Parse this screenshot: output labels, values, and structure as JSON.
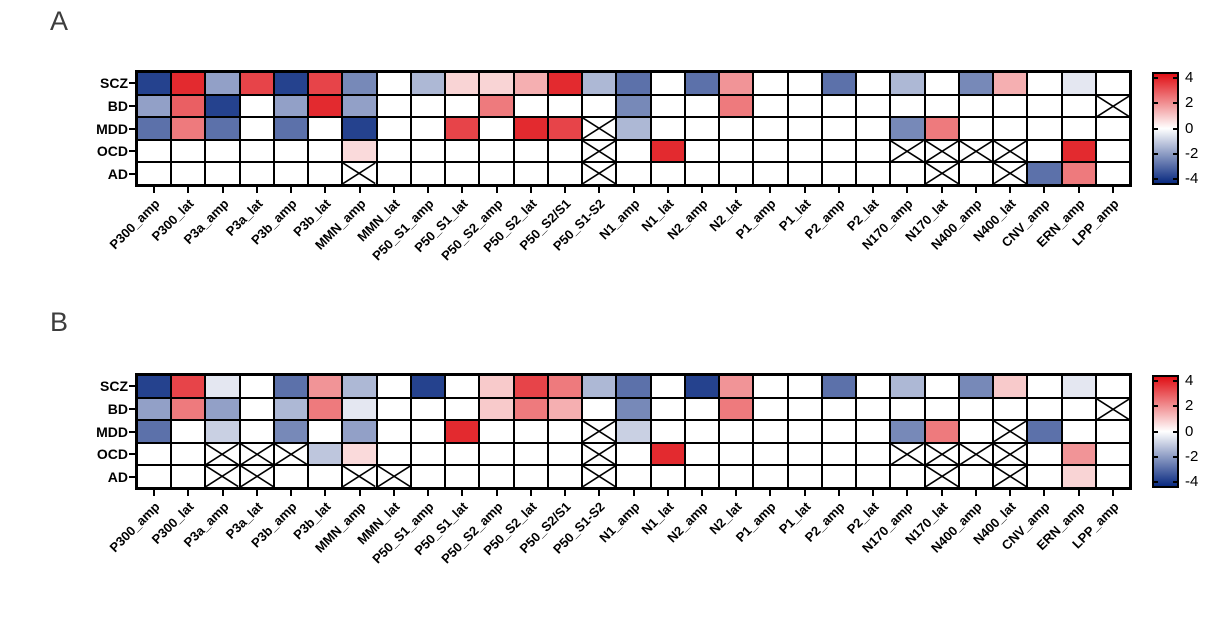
{
  "figure": {
    "panel_a_label": "A",
    "panel_b_label": "B"
  },
  "colorbar": {
    "ticks": [
      "4",
      "2",
      "0",
      "-2",
      "-4"
    ],
    "tick_values": [
      4,
      2,
      0,
      -2,
      -4
    ],
    "range": [
      -4.5,
      4.5
    ],
    "vmax": 4.5,
    "positive_color": "#e00f15",
    "negative_color": "#0a2a80",
    "zero_color": "#ffffff"
  },
  "chart_data": [
    {
      "type": "heatmap",
      "panel": "A",
      "rows": [
        "SCZ",
        "BD",
        "MDD",
        "OCD",
        "AD"
      ],
      "columns": [
        "P300_amp",
        "P300_lat",
        "P3a_amp",
        "P3a_lat",
        "P3b_amp",
        "P3b_lat",
        "MMN_amp",
        "MMN_lat",
        "P50_S1_amp",
        "P50_S1_lat",
        "P50_S2_amp",
        "P50_S2_lat",
        "P50_S2/S1",
        "P50_S1-S2",
        "N1_amp",
        "N1_lat",
        "N2_amp",
        "N2_lat",
        "P1_amp",
        "P1_lat",
        "P2_amp",
        "P2_lat",
        "N170_amp",
        "N170_lat",
        "N400_amp",
        "N400_lat",
        "CNV_amp",
        "ERN_amp",
        "LPP_amp"
      ],
      "values": [
        [
          -4,
          4,
          -2,
          3.5,
          -4,
          3.5,
          -2.5,
          0,
          -1.5,
          0.8,
          0.8,
          1.5,
          4,
          -1.5,
          -3,
          0,
          -3,
          2,
          0,
          0,
          -3,
          0,
          -1.5,
          0,
          -2.5,
          1.5,
          0,
          -0.5,
          0
        ],
        [
          -2,
          3,
          -4,
          0,
          -2,
          4,
          -2,
          0,
          0,
          0,
          2.5,
          0,
          0,
          0,
          -2.5,
          0,
          0,
          2.5,
          0,
          0,
          0,
          0,
          0,
          0,
          0,
          0,
          0,
          0,
          "x"
        ],
        [
          -3,
          2.5,
          -3,
          0,
          -3,
          0,
          -4,
          0,
          0,
          3.5,
          0,
          4,
          3.5,
          "x",
          -1.5,
          0,
          0,
          0,
          0,
          0,
          0,
          0,
          -2.5,
          2.5,
          0,
          0,
          0,
          0,
          0
        ],
        [
          0,
          0,
          0,
          0,
          0,
          0,
          0.7,
          0,
          0,
          0,
          0,
          0,
          0,
          "x",
          0,
          4,
          0,
          0,
          0,
          0,
          0,
          0,
          "x",
          "x",
          "x",
          "x",
          0,
          4,
          0
        ],
        [
          0,
          0,
          0,
          0,
          0,
          0,
          "x",
          0,
          0,
          0,
          0,
          0,
          0,
          "x",
          0,
          0,
          0,
          0,
          0,
          0,
          0,
          0,
          0,
          "x",
          0,
          "x",
          -3,
          2.5,
          0
        ]
      ]
    },
    {
      "type": "heatmap",
      "panel": "B",
      "rows": [
        "SCZ",
        "BD",
        "MDD",
        "OCD",
        "AD"
      ],
      "columns": [
        "P300_amp",
        "P300_lat",
        "P3a_amp",
        "P3a_lat",
        "P3b_amp",
        "P3b_lat",
        "MMN_amp",
        "MMN_lat",
        "P50_S1_amp",
        "P50_S1_lat",
        "P50_S2_amp",
        "P50_S2_lat",
        "P50_S2/S1",
        "P50_S1-S2",
        "N1_amp",
        "N1_lat",
        "N2_amp",
        "N2_lat",
        "P1_amp",
        "P1_lat",
        "P2_amp",
        "P2_lat",
        "N170_amp",
        "N170_lat",
        "N400_amp",
        "N400_lat",
        "CNV_amp",
        "ERN_amp",
        "LPP_amp"
      ],
      "values": [
        [
          -4,
          3.5,
          -0.5,
          0,
          -3,
          2,
          -1.5,
          0,
          -4,
          0,
          1,
          3.5,
          2.5,
          -1.5,
          -3,
          0,
          -4,
          2,
          0,
          0,
          -3,
          0,
          -1.5,
          0,
          -2.5,
          1,
          0,
          -0.5,
          0
        ],
        [
          -2,
          2.5,
          -2,
          0,
          -1.5,
          2.5,
          -0.5,
          0,
          0,
          0,
          1,
          2.5,
          1.5,
          0,
          -2.5,
          0,
          0,
          2.5,
          0,
          0,
          0,
          0,
          0,
          0,
          0,
          0,
          0,
          0,
          "x"
        ],
        [
          -3,
          0,
          -1,
          0,
          -2.5,
          0,
          -2,
          0,
          0,
          4,
          0,
          0,
          0,
          "x",
          -1,
          0,
          0,
          0,
          0,
          0,
          0,
          0,
          -2.5,
          2.5,
          0,
          "x",
          -3,
          0,
          0
        ],
        [
          0,
          0,
          "x",
          "x",
          "x",
          -1.2,
          0.7,
          0,
          0,
          0,
          0,
          0,
          0,
          "x",
          0,
          4,
          0,
          0,
          0,
          0,
          0,
          0,
          "x",
          "x",
          "x",
          "x",
          0,
          2,
          0
        ],
        [
          0,
          0,
          "x",
          "x",
          0,
          0,
          "x",
          "x",
          0,
          0,
          0,
          0,
          0,
          "x",
          0,
          0,
          0,
          0,
          0,
          0,
          0,
          0,
          0,
          "x",
          0,
          "x",
          0,
          0.8,
          0
        ]
      ]
    }
  ]
}
